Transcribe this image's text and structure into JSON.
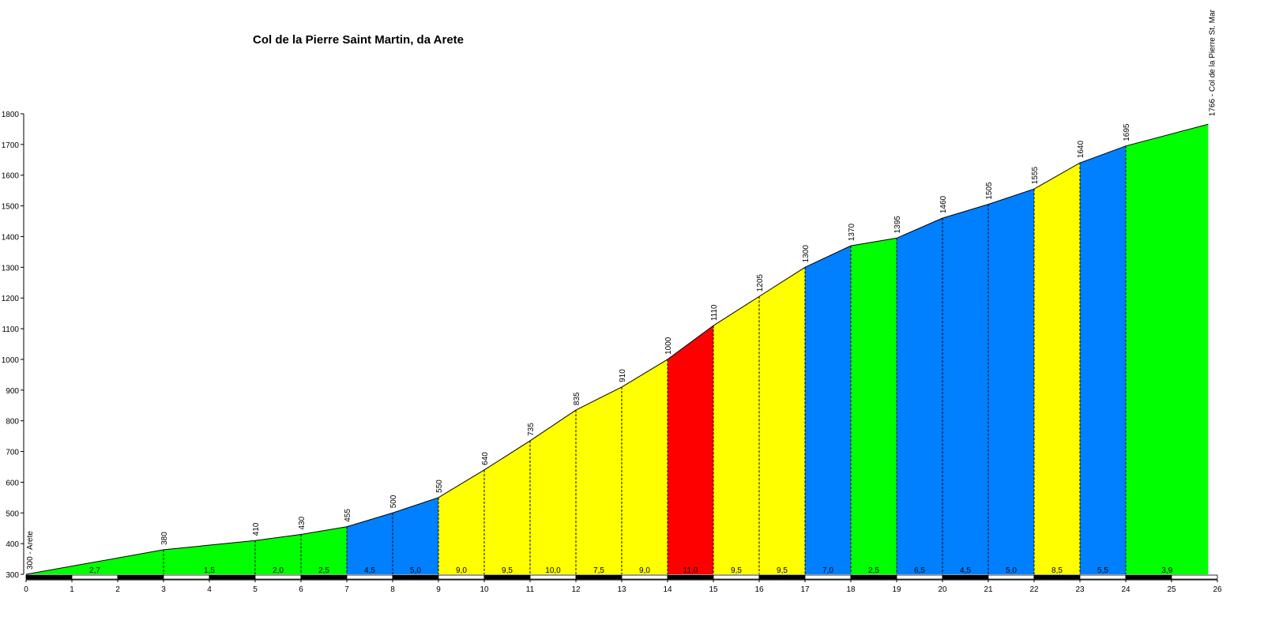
{
  "chart_data": {
    "type": "area",
    "title": "Col de la Pierre Saint Martin, da Arete",
    "xlabel": "",
    "ylabel": "",
    "xlim": [
      0,
      26
    ],
    "ylim": [
      300,
      1800
    ],
    "x_ticks": [
      "0",
      "1",
      "2",
      "3",
      "4",
      "5",
      "6",
      "7",
      "8",
      "9",
      "10",
      "11",
      "12",
      "13",
      "14",
      "15",
      "16",
      "17",
      "18",
      "19",
      "20",
      "21",
      "22",
      "23",
      "24",
      "25",
      "26"
    ],
    "y_ticks": [
      "300",
      "400",
      "500",
      "600",
      "700",
      "800",
      "900",
      "1000",
      "1100",
      "1200",
      "1300",
      "1400",
      "1500",
      "1600",
      "1700",
      "1800"
    ],
    "start_label": "300 - Arete",
    "end_label": "1766 - Col de la Pierre St. Mar",
    "profile": {
      "x": [
        0,
        3,
        5,
        6,
        7,
        8,
        9,
        10,
        11,
        12,
        13,
        14,
        15,
        16,
        17,
        18,
        19,
        20,
        21,
        22,
        23,
        24,
        25.8
      ],
      "y": [
        300,
        380,
        410,
        430,
        455,
        500,
        550,
        640,
        735,
        835,
        910,
        1000,
        1110,
        1205,
        1300,
        1370,
        1395,
        1460,
        1505,
        1555,
        1640,
        1695,
        1766
      ],
      "point_labels": [
        "",
        "380",
        "410",
        "430",
        "455",
        "500",
        "550",
        "640",
        "735",
        "835",
        "910",
        "1000",
        "1110",
        "1205",
        "1300",
        "1370",
        "1395",
        "1460",
        "1505",
        "1555",
        "1640",
        "1695",
        ""
      ]
    },
    "segments": [
      {
        "from": 0,
        "to": 3,
        "gradient": "2,7",
        "color": "#00ff00"
      },
      {
        "from": 3,
        "to": 5,
        "gradient": "1,5",
        "color": "#00ff00"
      },
      {
        "from": 5,
        "to": 6,
        "gradient": "2,0",
        "color": "#00ff00"
      },
      {
        "from": 6,
        "to": 7,
        "gradient": "2,5",
        "color": "#00ff00"
      },
      {
        "from": 7,
        "to": 8,
        "gradient": "4,5",
        "color": "#0080ff"
      },
      {
        "from": 8,
        "to": 9,
        "gradient": "5,0",
        "color": "#0080ff"
      },
      {
        "from": 9,
        "to": 10,
        "gradient": "9,0",
        "color": "#ffff00"
      },
      {
        "from": 10,
        "to": 11,
        "gradient": "9,5",
        "color": "#ffff00"
      },
      {
        "from": 11,
        "to": 12,
        "gradient": "10,0",
        "color": "#ffff00"
      },
      {
        "from": 12,
        "to": 13,
        "gradient": "7,5",
        "color": "#ffff00"
      },
      {
        "from": 13,
        "to": 14,
        "gradient": "9,0",
        "color": "#ffff00"
      },
      {
        "from": 14,
        "to": 15,
        "gradient": "11,0",
        "color": "#ff0000"
      },
      {
        "from": 15,
        "to": 16,
        "gradient": "9,5",
        "color": "#ffff00"
      },
      {
        "from": 16,
        "to": 17,
        "gradient": "9,5",
        "color": "#ffff00"
      },
      {
        "from": 17,
        "to": 18,
        "gradient": "7,0",
        "color": "#0080ff"
      },
      {
        "from": 18,
        "to": 19,
        "gradient": "2,5",
        "color": "#00ff00"
      },
      {
        "from": 19,
        "to": 20,
        "gradient": "6,5",
        "color": "#0080ff"
      },
      {
        "from": 20,
        "to": 21,
        "gradient": "4,5",
        "color": "#0080ff"
      },
      {
        "from": 21,
        "to": 22,
        "gradient": "5,0",
        "color": "#0080ff"
      },
      {
        "from": 22,
        "to": 23,
        "gradient": "8,5",
        "color": "#ffff00"
      },
      {
        "from": 23,
        "to": 24,
        "gradient": "5,5",
        "color": "#0080ff"
      },
      {
        "from": 24,
        "to": 25.8,
        "gradient": "3,9",
        "color": "#00ff00"
      }
    ],
    "grid": false,
    "legend": "none"
  }
}
